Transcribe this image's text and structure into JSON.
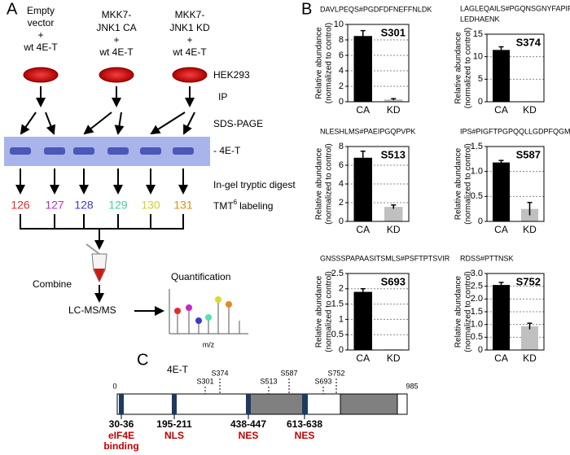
{
  "panel_a": {
    "label": "A",
    "conditions": [
      [
        "Empty",
        "vector",
        "+",
        "wt 4E-T"
      ],
      [
        "MKK7-",
        "JNK1 CA",
        "+",
        "wt 4E-T"
      ],
      [
        "MKK7-",
        "JNK1 KD",
        "+",
        "wt 4E-T"
      ]
    ],
    "cells": "HEK293",
    "ip": "IP",
    "sds_page": "SDS-PAGE",
    "band": "- 4E-T",
    "digest": "In-gel tryptic digest",
    "tmt_tags": [
      {
        "label": "126",
        "color": "#e52b2b"
      },
      {
        "label": "127",
        "color": "#c528c5"
      },
      {
        "label": "128",
        "color": "#3b3bd0"
      },
      {
        "label": "129",
        "color": "#3fd0a0"
      },
      {
        "label": "130",
        "color": "#d2d220"
      },
      {
        "label": "131",
        "color": "#e08a20"
      }
    ],
    "tmt": {
      "prefix": "TMT",
      "superscript": "6",
      "suffix": "labeling"
    },
    "combine": "Combine",
    "lcms": "LC-MS/MS",
    "quantification": "Quantification",
    "mz": "m/z"
  },
  "panel_b": {
    "label": "B"
  },
  "chart_data": [
    {
      "type": "bar",
      "title": [
        "DAVLPEQS#PGDFDFNEFFNLDK"
      ],
      "site": "S301",
      "ylabel": [
        "Relative abundance",
        "(normalized to control)"
      ],
      "categories": [
        "CA",
        "KD"
      ],
      "values": [
        8.5,
        0.3
      ],
      "errors": [
        0.7,
        0.1
      ],
      "colors": [
        "#000000",
        "#c0c0c0"
      ],
      "ylim": [
        0,
        10
      ],
      "yticks": [
        0,
        2,
        4,
        6,
        8,
        10
      ],
      "grid": true
    },
    {
      "type": "bar",
      "title": [
        "LAGLEQAILS#PGQNSGNYFAPIP",
        "LEDHAENK"
      ],
      "site": "S374",
      "ylabel": [
        "Relative abundance",
        "(normalized to control)"
      ],
      "categories": [
        "CA",
        "KD"
      ],
      "values": [
        11.5,
        0.1
      ],
      "errors": [
        0.7,
        null
      ],
      "colors": [
        "#000000",
        "#c0c0c0"
      ],
      "ylim": [
        0,
        15
      ],
      "yticks": [
        0,
        5,
        10,
        15
      ],
      "grid": true
    },
    {
      "type": "bar",
      "title": [
        "NLESHLMS#PAEIPGQPVPK"
      ],
      "site": "S513",
      "ylabel": [
        "Relative abundance",
        "(normalized to control)"
      ],
      "categories": [
        "CA",
        "KD"
      ],
      "values": [
        6.8,
        1.55
      ],
      "errors": [
        0.7,
        0.2
      ],
      "colors": [
        "#000000",
        "#c0c0c0"
      ],
      "ylim": [
        0,
        8
      ],
      "yticks": [
        0,
        2,
        4,
        6,
        8
      ],
      "grid": true
    },
    {
      "type": "bar",
      "title": [
        "IPS#PIGFTPGPQQLLGDPFQGMR"
      ],
      "site": "S587",
      "ylabel": [
        "Relative abundance",
        "(normalized to control)"
      ],
      "categories": [
        "CA",
        "KD"
      ],
      "values": [
        1.18,
        0.25
      ],
      "errors": [
        0.04,
        0.13
      ],
      "colors": [
        "#000000",
        "#c0c0c0"
      ],
      "ylim": [
        0,
        1.5
      ],
      "yticks": [
        0,
        0.5,
        {
          "value": 1,
          "label": "1.0"
        },
        1.5
      ],
      "grid": true
    },
    {
      "type": "bar",
      "title": [
        "GNSSSPAPAASITSMLS#PSFTPTSVIR"
      ],
      "site": "S693",
      "ylabel": [
        "Relative abundance",
        "(normalized to control)"
      ],
      "categories": [
        "CA",
        "KD"
      ],
      "values": [
        1.9,
        0.02
      ],
      "errors": [
        0.1,
        null
      ],
      "colors": [
        "#000000",
        "#c0c0c0"
      ],
      "ylim": [
        0,
        2.5
      ],
      "yticks": [
        0,
        0.5,
        1,
        1.5,
        2,
        2.5
      ],
      "grid": true
    },
    {
      "type": "bar",
      "title": [
        "RDSS#PTTNSK"
      ],
      "site": "S752",
      "ylabel": [
        "Relative abundance",
        "(normalized to control)"
      ],
      "categories": [
        "CA",
        "KD"
      ],
      "values": [
        2.55,
        0.93
      ],
      "errors": [
        0.1,
        0.12
      ],
      "colors": [
        "#000000",
        "#c0c0c0"
      ],
      "ylim": [
        0,
        3
      ],
      "yticks": [
        0,
        0.5,
        {
          "value": 1,
          "label": "1.0"
        },
        1.5,
        {
          "value": 2,
          "label": "2.0"
        },
        2.5,
        {
          "value": 3,
          "label": "3.0"
        }
      ],
      "grid": true
    }
  ],
  "panel_c": {
    "label": "C",
    "protein": "4E-T",
    "start": "0",
    "end": "985",
    "sites": [
      "S301",
      "S374",
      "S513",
      "S587",
      "S693",
      "S752"
    ],
    "domains": [
      {
        "range": "30-36",
        "name": [
          "eIF4E",
          "binding"
        ]
      },
      {
        "range": "195-211",
        "name": [
          "NLS"
        ]
      },
      {
        "range": "438-447",
        "name": [
          "NES"
        ]
      },
      {
        "range": "613-638",
        "name": [
          "NES"
        ]
      }
    ]
  }
}
